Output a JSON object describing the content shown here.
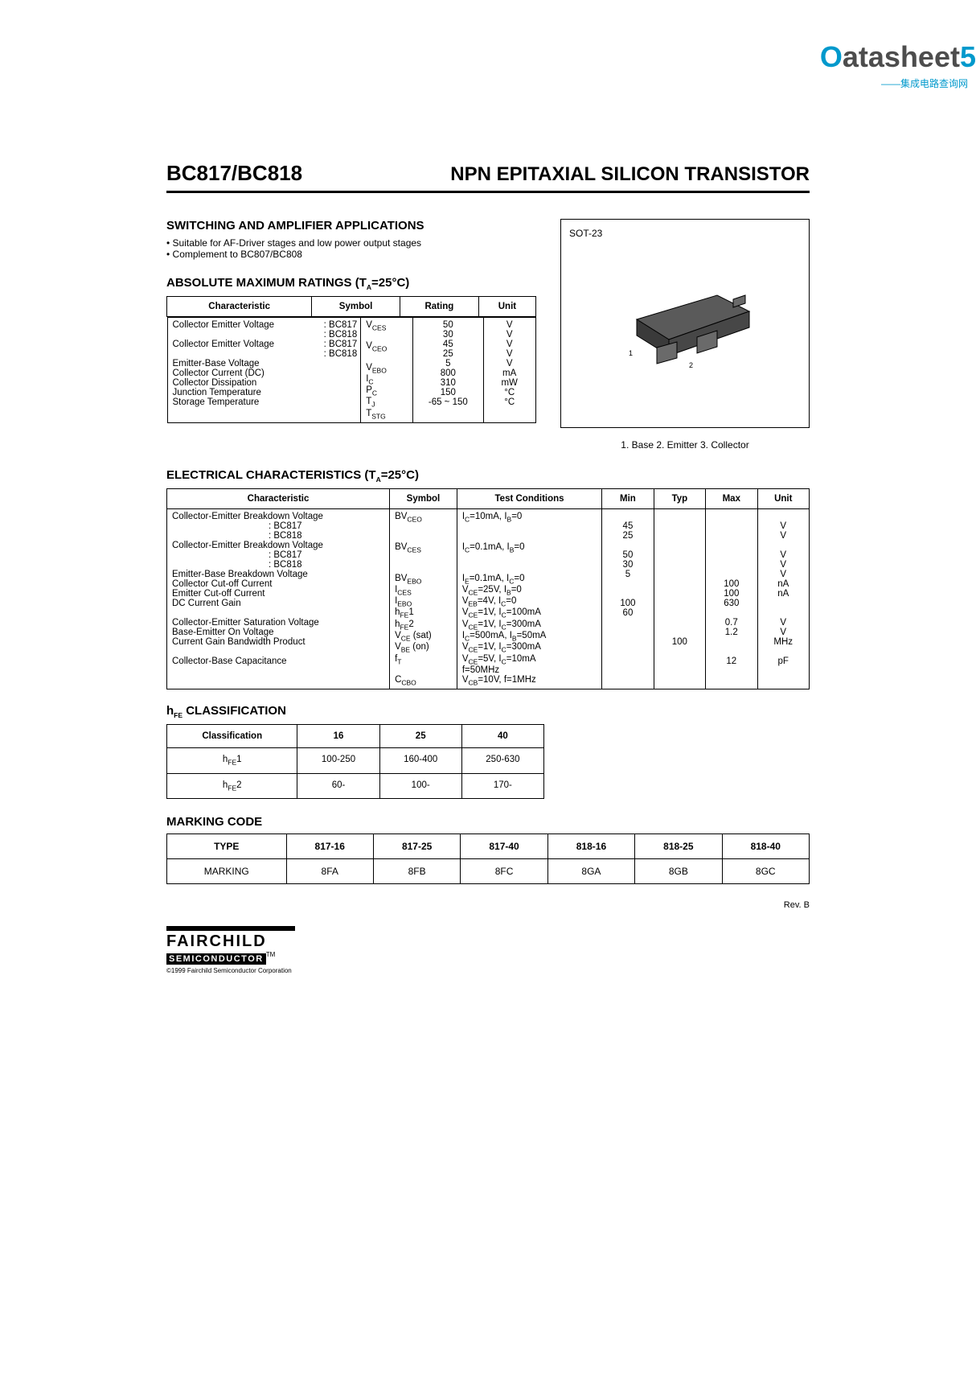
{
  "watermark": {
    "prefix": "O",
    "main": "atasheet",
    "suffix": "5",
    "sub": "——集成电路查询网"
  },
  "header": {
    "part": "BC817/BC818",
    "title": "NPN EPITAXIAL SILICON TRANSISTOR"
  },
  "applications": {
    "heading": "SWITCHING AND AMPLIFIER APPLICATIONS",
    "bullets": [
      "Suitable for AF-Driver stages and low power output stages",
      "Complement to BC807/BC808"
    ]
  },
  "package": {
    "label": "SOT-23",
    "pins": "1. Base 2. Emitter 3. Collector"
  },
  "abs_max": {
    "heading": "ABSOLUTE MAXIMUM RATINGS (T",
    "heading_sub": "A",
    "heading_tail": "=25°C)",
    "columns": [
      "Characteristic",
      "Symbol",
      "Rating",
      "Unit"
    ],
    "rows": [
      {
        "char": "Collector Emitter Voltage",
        "sub": ": BC817",
        "sym": "V",
        "symsub": "CES",
        "rating": "50",
        "unit": "V"
      },
      {
        "char": "",
        "sub": ": BC818",
        "sym": "",
        "symsub": "",
        "rating": "30",
        "unit": "V"
      },
      {
        "char": "Collector Emitter Voltage",
        "sub": ": BC817",
        "sym": "V",
        "symsub": "CEO",
        "rating": "45",
        "unit": "V"
      },
      {
        "char": "",
        "sub": ": BC818",
        "sym": "",
        "symsub": "",
        "rating": "25",
        "unit": "V"
      },
      {
        "char": "Emitter-Base Voltage",
        "sub": "",
        "sym": "V",
        "symsub": "EBO",
        "rating": "5",
        "unit": "V"
      },
      {
        "char": "Collector Current (DC)",
        "sub": "",
        "sym": "I",
        "symsub": "C",
        "rating": "800",
        "unit": "mA"
      },
      {
        "char": "Collector Dissipation",
        "sub": "",
        "sym": "P",
        "symsub": "C",
        "rating": "310",
        "unit": "mW"
      },
      {
        "char": "Junction Temperature",
        "sub": "",
        "sym": "T",
        "symsub": "J",
        "rating": "150",
        "unit": "°C"
      },
      {
        "char": "Storage Temperature",
        "sub": "",
        "sym": "T",
        "symsub": "STG",
        "rating": "-65 ~ 150",
        "unit": "°C"
      }
    ]
  },
  "elec": {
    "heading": "ELECTRICAL CHARACTERISTICS (T",
    "heading_sub": "A",
    "heading_tail": "=25°C)",
    "columns": [
      "Characteristic",
      "Symbol",
      "Test Conditions",
      "Min",
      "Typ",
      "Max",
      "Unit"
    ],
    "rows": [
      {
        "c": "Collector-Emitter Breakdown Voltage",
        "s": "BV",
        "ss": "CEO",
        "tc": "I",
        "tcs": "C",
        "tct": "=10mA, I",
        "tcs2": "B",
        "tct2": "=0",
        "min": "",
        "typ": "",
        "max": "",
        "u": ""
      },
      {
        "c": ": BC817",
        "s": "",
        "ss": "",
        "tc": "",
        "min": "45",
        "typ": "",
        "max": "",
        "u": "V",
        "indent": true
      },
      {
        "c": ": BC818",
        "s": "",
        "ss": "",
        "tc": "",
        "min": "25",
        "typ": "",
        "max": "",
        "u": "V",
        "indent": true
      },
      {
        "c": "Collector-Emitter Breakdown Voltage",
        "s": "BV",
        "ss": "CES",
        "tc": "I",
        "tcs": "C",
        "tct": "=0.1mA, I",
        "tcs2": "B",
        "tct2": "=0",
        "min": "",
        "typ": "",
        "max": "",
        "u": ""
      },
      {
        "c": ": BC817",
        "s": "",
        "ss": "",
        "tc": "",
        "min": "50",
        "typ": "",
        "max": "",
        "u": "V",
        "indent": true
      },
      {
        "c": ": BC818",
        "s": "",
        "ss": "",
        "tc": "",
        "min": "30",
        "typ": "",
        "max": "",
        "u": "V",
        "indent": true
      },
      {
        "c": "Emitter-Base Breakdown Voltage",
        "s": "BV",
        "ss": "EBO",
        "tc_full": "IE=0.1mA, IC=0",
        "min": "5",
        "typ": "",
        "max": "",
        "u": "V"
      },
      {
        "c": "Collector Cut-off Current",
        "s": "I",
        "ss": "CES",
        "tc_full": "VCE=25V, IB=0",
        "min": "",
        "typ": "",
        "max": "100",
        "u": "nA"
      },
      {
        "c": "Emitter Cut-off Current",
        "s": "I",
        "ss": "EBO",
        "tc_full": "VEB=4V, IC=0",
        "min": "",
        "typ": "",
        "max": "100",
        "u": "nA"
      },
      {
        "c": "DC Current Gain",
        "s": "h",
        "ss": "FE",
        "sst": "1",
        "tc_full": "VCE=1V, IC=100mA",
        "min": "100",
        "typ": "",
        "max": "630",
        "u": ""
      },
      {
        "c": "",
        "s": "h",
        "ss": "FE",
        "sst": "2",
        "tc_full": "VCE=1V, IC=300mA",
        "min": "60",
        "typ": "",
        "max": "",
        "u": ""
      },
      {
        "c": "Collector-Emitter Saturation Voltage",
        "s": "V",
        "ss": "CE",
        "sst": " (sat)",
        "tc_full": "IC=500mA, IB=50mA",
        "min": "",
        "typ": "",
        "max": "0.7",
        "u": "V"
      },
      {
        "c": "Base-Emitter On Voltage",
        "s": "V",
        "ss": "BE",
        "sst": " (on)",
        "tc_full": "VCE=1V, IC=300mA",
        "min": "",
        "typ": "",
        "max": "1.2",
        "u": "V"
      },
      {
        "c": "Current Gain Bandwidth Product",
        "s": "f",
        "ss": "T",
        "tc_full": "VCE=5V, IC=10mA",
        "min": "",
        "typ": "100",
        "max": "",
        "u": "MHz"
      },
      {
        "c": "",
        "s": "",
        "ss": "",
        "tc_full": "f=50MHz",
        "min": "",
        "typ": "",
        "max": "",
        "u": ""
      },
      {
        "c": "Collector-Base Capacitance",
        "s": "C",
        "ss": "CBO",
        "tc_full": "VCB=10V, f=1MHz",
        "min": "",
        "typ": "",
        "max": "12",
        "u": "pF"
      }
    ]
  },
  "hfe": {
    "heading": "h",
    "heading_sub": "FE",
    "heading_tail": " CLASSIFICATION",
    "columns": [
      "Classification",
      "16",
      "25",
      "40"
    ],
    "rows": [
      {
        "l": "h",
        "ls": "FE",
        "lt": "1",
        "v": [
          "100-250",
          "160-400",
          "250-630"
        ]
      },
      {
        "l": "h",
        "ls": "FE",
        "lt": "2",
        "v": [
          "60-",
          "100-",
          "170-"
        ]
      }
    ]
  },
  "marking": {
    "heading": "MARKING CODE",
    "columns": [
      "TYPE",
      "817-16",
      "817-25",
      "817-40",
      "818-16",
      "818-25",
      "818-40"
    ],
    "row_label": "MARKING",
    "row": [
      "8FA",
      "8FB",
      "8FC",
      "8GA",
      "8GB",
      "8GC"
    ]
  },
  "rev": "Rev. B",
  "footer": {
    "brand": "FAIRCHILD",
    "sub": "SEMICONDUCTOR",
    "tm": "TM",
    "copyright": "©1999 Fairchild Semiconductor Corporation"
  }
}
